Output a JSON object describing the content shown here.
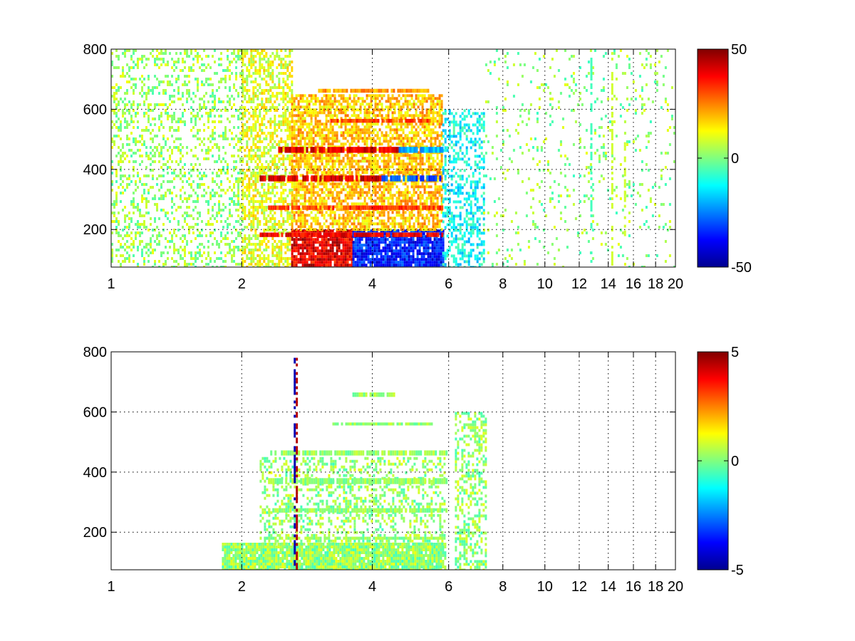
{
  "chart_data": [
    {
      "type": "heatmap",
      "x_scale": "log",
      "xlim": [
        1,
        20
      ],
      "ylim": [
        75,
        800
      ],
      "x_ticks": [
        1,
        2,
        4,
        6,
        8,
        10,
        12,
        14,
        16,
        18,
        20
      ],
      "x_tick_labels": [
        "1",
        "2",
        "4",
        "6",
        "8",
        "10",
        "12",
        "14",
        "16",
        "18",
        "20"
      ],
      "y_ticks": [
        200,
        400,
        600,
        800
      ],
      "y_tick_labels": [
        "200",
        "400",
        "600",
        "800"
      ],
      "grid": true,
      "colormap": "jet",
      "clim": [
        -50,
        50
      ],
      "colorbar_ticks": [
        -50,
        0,
        50
      ],
      "colorbar_tick_labels": [
        "-50",
        "0",
        "50"
      ],
      "colorbar_placement": "right",
      "patches": [
        {
          "x": [
            1.0,
            2.0
          ],
          "y": [
            75,
            800
          ],
          "value": 3,
          "density": 0.3
        },
        {
          "x": [
            2.0,
            2.6
          ],
          "y": [
            75,
            800
          ],
          "value": 10,
          "density": 0.55
        },
        {
          "x": [
            2.6,
            3.6
          ],
          "y": [
            75,
            200
          ],
          "value": 40,
          "density": 0.9
        },
        {
          "x": [
            3.6,
            5.8
          ],
          "y": [
            75,
            200
          ],
          "value": -35,
          "density": 0.9
        },
        {
          "x": [
            2.6,
            5.8
          ],
          "y": [
            200,
            650
          ],
          "value": 18,
          "density": 0.7
        },
        {
          "x": [
            5.8,
            7.2
          ],
          "y": [
            75,
            600
          ],
          "value": -12,
          "density": 0.45
        },
        {
          "x": [
            7.2,
            20.0
          ],
          "y": [
            75,
            800
          ],
          "value": 2,
          "density": 0.07
        }
      ],
      "bands": [
        {
          "y": [
            175,
            190
          ],
          "x": [
            2.2,
            5.8
          ],
          "value": 38
        },
        {
          "y": [
            265,
            280
          ],
          "x": [
            2.3,
            5.8
          ],
          "value": 32
        },
        {
          "y": [
            360,
            380
          ],
          "x": [
            2.2,
            4.2
          ],
          "value": 42
        },
        {
          "y": [
            360,
            380
          ],
          "x": [
            4.2,
            5.8
          ],
          "value": -30
        },
        {
          "y": [
            455,
            475
          ],
          "x": [
            2.4,
            4.6
          ],
          "value": 40
        },
        {
          "y": [
            455,
            475
          ],
          "x": [
            4.6,
            5.8
          ],
          "value": -20
        },
        {
          "y": [
            555,
            568
          ],
          "x": [
            3.2,
            5.4
          ],
          "value": 30
        },
        {
          "y": [
            655,
            668
          ],
          "x": [
            3.0,
            5.4
          ],
          "value": 22
        }
      ],
      "stripes": [
        {
          "x": 14.3,
          "y": [
            75,
            800
          ],
          "value": 8
        },
        {
          "x": 15.3,
          "y": [
            180,
            500
          ],
          "value": 8
        },
        {
          "x": 12.8,
          "y": [
            75,
            800
          ],
          "value": -6
        }
      ]
    },
    {
      "type": "heatmap",
      "x_scale": "log",
      "xlim": [
        1,
        20
      ],
      "ylim": [
        75,
        800
      ],
      "x_ticks": [
        1,
        2,
        4,
        6,
        8,
        10,
        12,
        14,
        16,
        18,
        20
      ],
      "x_tick_labels": [
        "1",
        "2",
        "4",
        "6",
        "8",
        "10",
        "12",
        "14",
        "16",
        "18",
        "20"
      ],
      "y_ticks": [
        200,
        400,
        600,
        800
      ],
      "y_tick_labels": [
        "200",
        "400",
        "600",
        "800"
      ],
      "grid": true,
      "colormap": "jet",
      "clim": [
        -5,
        5
      ],
      "colorbar_ticks": [
        -5,
        0,
        5
      ],
      "colorbar_tick_labels": [
        "-5",
        "0",
        "5"
      ],
      "colorbar_placement": "right",
      "patches": [
        {
          "x": [
            1.8,
            5.9
          ],
          "y": [
            75,
            165
          ],
          "value": 0.2,
          "density": 0.95
        },
        {
          "x": [
            2.2,
            5.9
          ],
          "y": [
            165,
            450
          ],
          "value": 0.2,
          "density": 0.35
        },
        {
          "x": [
            6.2,
            7.3
          ],
          "y": [
            75,
            600
          ],
          "value": 0.2,
          "density": 0.45
        }
      ],
      "bands": [
        {
          "y": [
            175,
            185
          ],
          "x": [
            2.2,
            5.9
          ],
          "value": 0.2
        },
        {
          "y": [
            265,
            280
          ],
          "x": [
            2.3,
            5.9
          ],
          "value": 0.2
        },
        {
          "y": [
            360,
            380
          ],
          "x": [
            2.3,
            5.9
          ],
          "value": 0.2
        },
        {
          "y": [
            455,
            472
          ],
          "x": [
            2.3,
            5.9
          ],
          "value": 0.2
        },
        {
          "y": [
            555,
            565
          ],
          "x": [
            3.2,
            5.5
          ],
          "value": 0.2
        },
        {
          "y": [
            650,
            665
          ],
          "x": [
            3.6,
            4.5
          ],
          "value": 0.2
        }
      ],
      "stripes": [
        {
          "x": 2.65,
          "y": [
            75,
            780
          ],
          "value": -4.5
        },
        {
          "x": 2.68,
          "y": [
            75,
            780
          ],
          "value": 4.5
        }
      ]
    }
  ]
}
